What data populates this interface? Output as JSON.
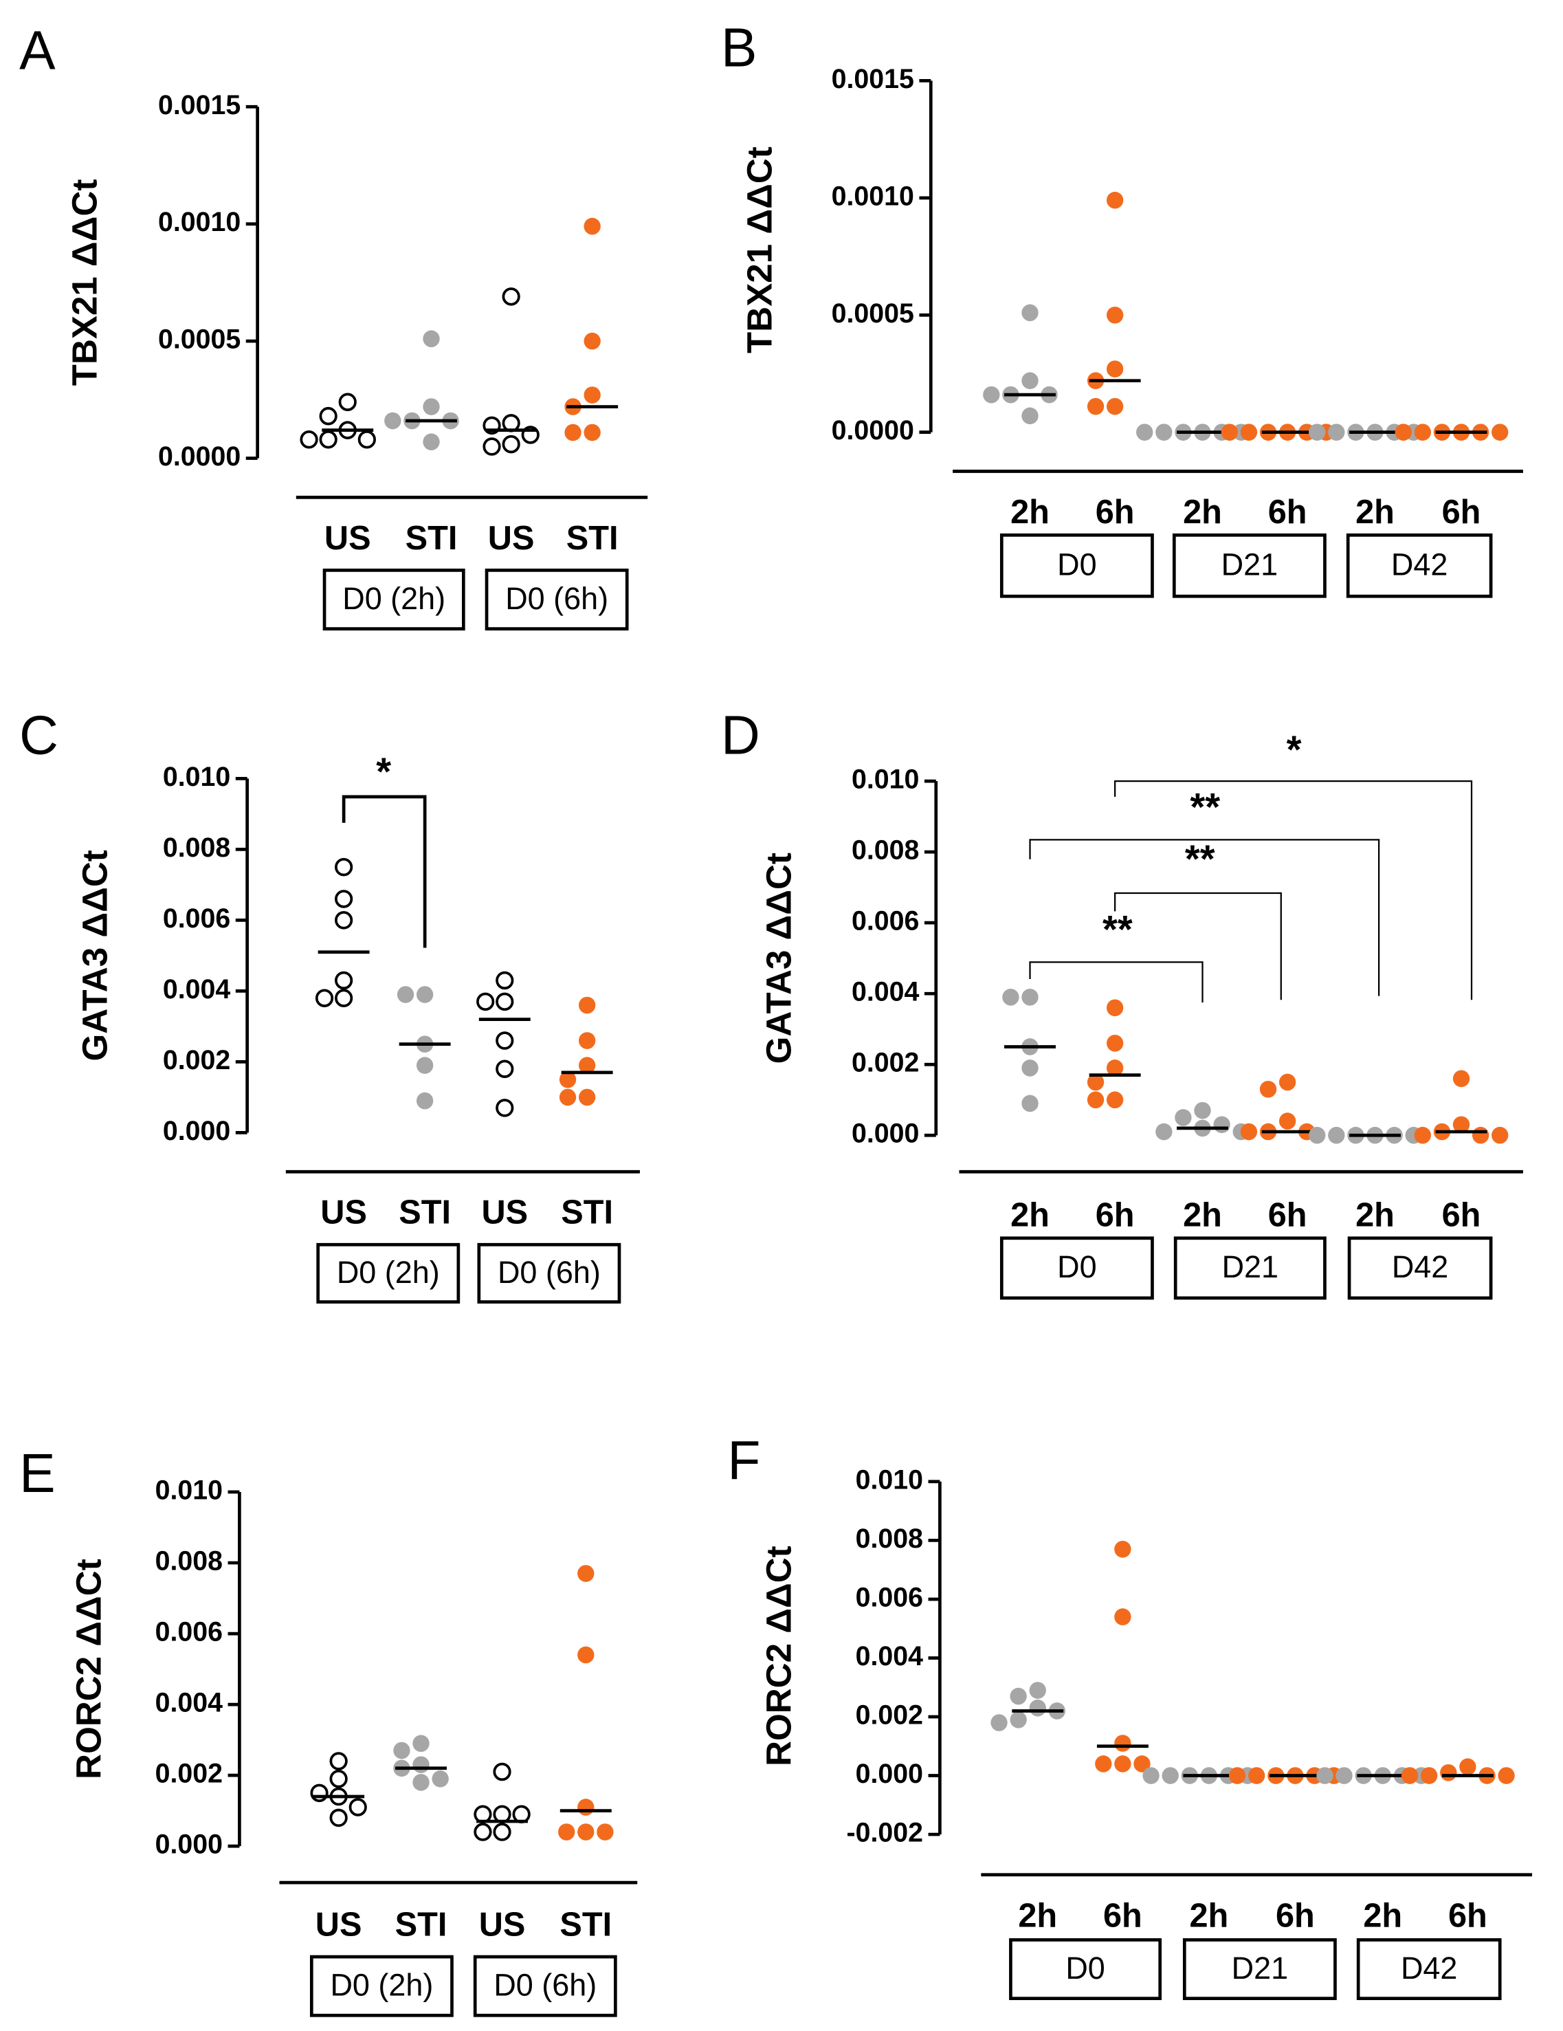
{
  "chart_data": [
    {
      "type": "dot",
      "panel": "A",
      "ylabel": "TBX21 ΔΔCt",
      "ylim": [
        0,
        0.0015
      ],
      "yticks": [
        {
          "value": 0,
          "label": "0.0000"
        },
        0.0005,
        {
          "value": 0.001,
          "label": "0.0010"
        },
        0.0015
      ],
      "groups": [
        {
          "label": "D0 (2h)",
          "items": [
            {
              "category": "US",
              "color": "#000000",
              "filled": false,
              "values": [
                0.00024,
                0.00018,
                0.00012,
                8e-05,
                8e-05,
                8e-05
              ],
              "median": 0.00012
            },
            {
              "category": "STI",
              "color": "#a6a6a6",
              "filled": true,
              "values": [
                0.00051,
                0.00022,
                0.00016,
                0.00016,
                0.00016,
                7e-05
              ],
              "median": 0.00016
            }
          ]
        },
        {
          "label": "D0 (6h)",
          "items": [
            {
              "category": "US",
              "color": "#000000",
              "filled": false,
              "values": [
                0.00069,
                0.00015,
                0.00014,
                0.0001,
                6e-05,
                5e-05
              ],
              "median": 0.00012
            },
            {
              "category": "STI",
              "color": "#f26b1d",
              "filled": true,
              "values": [
                0.00099,
                0.0005,
                0.00027,
                0.00022,
                0.00011,
                0.00011
              ],
              "median": 0.00022
            }
          ]
        }
      ],
      "annotations": []
    },
    {
      "type": "dot",
      "panel": "B",
      "ylabel": "TBX21 ΔΔCt",
      "ylim": [
        0,
        0.0015
      ],
      "yticks": [
        {
          "value": 0,
          "label": "0.0000"
        },
        0.0005,
        {
          "value": 0.001,
          "label": "0.0010"
        },
        0.0015
      ],
      "groups": [
        {
          "label": "D0",
          "items": [
            {
              "category": "2h",
              "color": "#a6a6a6",
              "filled": true,
              "values": [
                0.00051,
                0.00022,
                0.00016,
                0.00016,
                0.00016,
                7e-05
              ],
              "median": 0.00016
            },
            {
              "category": "6h",
              "color": "#f26b1d",
              "filled": true,
              "values": [
                0.00099,
                0.0005,
                0.00027,
                0.00022,
                0.00011,
                0.00011
              ],
              "median": 0.00022
            }
          ]
        },
        {
          "label": "D21",
          "items": [
            {
              "category": "2h",
              "color": "#a6a6a6",
              "filled": true,
              "values": [
                0,
                0,
                0,
                0,
                0,
                0
              ],
              "median": 0
            },
            {
              "category": "6h",
              "color": "#f26b1d",
              "filled": true,
              "values": [
                0,
                0,
                0,
                0,
                0,
                0
              ],
              "median": 0
            }
          ]
        },
        {
          "label": "D42",
          "items": [
            {
              "category": "2h",
              "color": "#a6a6a6",
              "filled": true,
              "values": [
                0,
                0,
                0,
                0,
                0,
                0
              ],
              "median": 0
            },
            {
              "category": "6h",
              "color": "#f26b1d",
              "filled": true,
              "values": [
                0,
                0,
                0,
                0,
                0,
                0
              ],
              "median": 0
            }
          ]
        }
      ],
      "annotations": []
    },
    {
      "type": "dot",
      "panel": "C",
      "ylabel": "GATA3 ΔΔCt",
      "ylim": [
        0,
        0.01
      ],
      "yticks": [
        {
          "value": 0,
          "label": "0.000"
        },
        0.002,
        0.004,
        0.006,
        0.008,
        {
          "value": 0.01,
          "label": "0.010"
        }
      ],
      "groups": [
        {
          "label": "D0 (2h)",
          "items": [
            {
              "category": "US",
              "color": "#000000",
              "filled": false,
              "values": [
                0.0075,
                0.0066,
                0.006,
                0.0043,
                0.0038,
                0.0038
              ],
              "median": 0.0051
            },
            {
              "category": "STI",
              "color": "#a6a6a6",
              "filled": true,
              "values": [
                0.0039,
                0.0039,
                0.0025,
                0.0019,
                0.0009
              ],
              "median": 0.0025
            }
          ]
        },
        {
          "label": "D0 (6h)",
          "items": [
            {
              "category": "US",
              "color": "#000000",
              "filled": false,
              "values": [
                0.0043,
                0.0037,
                0.0037,
                0.0026,
                0.0018,
                0.0007
              ],
              "median": 0.0032
            },
            {
              "category": "STI",
              "color": "#f26b1d",
              "filled": true,
              "values": [
                0.0036,
                0.0026,
                0.0019,
                0.0015,
                0.001,
                0.001
              ],
              "median": 0.0017
            }
          ]
        }
      ],
      "annotations": [
        "*"
      ]
    },
    {
      "type": "dot",
      "panel": "D",
      "ylabel": "GATA3 ΔΔCt",
      "ylim": [
        0,
        0.01
      ],
      "yticks": [
        {
          "value": 0,
          "label": "0.000"
        },
        0.002,
        0.004,
        0.006,
        0.008,
        {
          "value": 0.01,
          "label": "0.010"
        }
      ],
      "groups": [
        {
          "label": "D0",
          "items": [
            {
              "category": "2h",
              "color": "#a6a6a6",
              "filled": true,
              "values": [
                0.0039,
                0.0039,
                0.0025,
                0.0019,
                0.0009
              ],
              "median": 0.0025
            },
            {
              "category": "6h",
              "color": "#f26b1d",
              "filled": true,
              "values": [
                0.0036,
                0.0026,
                0.0019,
                0.0015,
                0.001,
                0.001
              ],
              "median": 0.0017
            }
          ]
        },
        {
          "label": "D21",
          "items": [
            {
              "category": "2h",
              "color": "#a6a6a6",
              "filled": true,
              "values": [
                0.0007,
                0.0005,
                0.0003,
                0.0002,
                0.0001,
                0.0001
              ],
              "median": 0.0002
            },
            {
              "category": "6h",
              "color": "#f26b1d",
              "filled": true,
              "values": [
                0.0015,
                0.0013,
                0.0004,
                0.0001,
                0.0001,
                0.0001
              ],
              "median": 0.0001
            }
          ]
        },
        {
          "label": "D42",
          "items": [
            {
              "category": "2h",
              "color": "#a6a6a6",
              "filled": true,
              "values": [
                0,
                0,
                0,
                0,
                0,
                0
              ],
              "median": 0
            },
            {
              "category": "6h",
              "color": "#f26b1d",
              "filled": true,
              "values": [
                0.0016,
                0.0003,
                0.0001,
                0,
                0,
                0
              ],
              "median": 0.0001
            }
          ]
        }
      ],
      "annotations": [
        "**",
        "**",
        "**",
        "*"
      ]
    },
    {
      "type": "dot",
      "panel": "E",
      "ylabel": "RORC2 ΔΔCt",
      "ylim": [
        0,
        0.01
      ],
      "yticks": [
        {
          "value": 0,
          "label": "0.000"
        },
        0.002,
        0.004,
        0.006,
        0.008,
        {
          "value": 0.01,
          "label": "0.010"
        }
      ],
      "groups": [
        {
          "label": "D0 (2h)",
          "items": [
            {
              "category": "US",
              "color": "#000000",
              "filled": false,
              "values": [
                0.0024,
                0.0019,
                0.0015,
                0.0014,
                0.0011,
                0.0008
              ],
              "median": 0.0014
            },
            {
              "category": "STI",
              "color": "#a6a6a6",
              "filled": true,
              "values": [
                0.0029,
                0.0027,
                0.0023,
                0.0022,
                0.0019,
                0.0018
              ],
              "median": 0.0022
            }
          ]
        },
        {
          "label": "D0 (6h)",
          "items": [
            {
              "category": "US",
              "color": "#000000",
              "filled": false,
              "values": [
                0.0021,
                0.0009,
                0.0009,
                0.0009,
                0.0004,
                0.0004
              ],
              "median": 0.0007
            },
            {
              "category": "STI",
              "color": "#f26b1d",
              "filled": true,
              "values": [
                0.0077,
                0.0054,
                0.0011,
                0.0004,
                0.0004,
                0.0004
              ],
              "median": 0.001
            }
          ]
        }
      ],
      "annotations": []
    },
    {
      "type": "dot",
      "panel": "F",
      "ylabel": "RORC2 ΔΔCt",
      "ylim": [
        -0.002,
        0.01
      ],
      "yticks": [
        -0.002,
        {
          "value": 0,
          "label": "0.000"
        },
        0.002,
        0.004,
        0.006,
        0.008,
        {
          "value": 0.01,
          "label": "0.010"
        }
      ],
      "groups": [
        {
          "label": "D0",
          "items": [
            {
              "category": "2h",
              "color": "#a6a6a6",
              "filled": true,
              "values": [
                0.0029,
                0.0027,
                0.0023,
                0.0022,
                0.0019,
                0.0018
              ],
              "median": 0.0022
            },
            {
              "category": "6h",
              "color": "#f26b1d",
              "filled": true,
              "values": [
                0.0077,
                0.0054,
                0.0011,
                0.0004,
                0.0004,
                0.0004
              ],
              "median": 0.001
            }
          ]
        },
        {
          "label": "D21",
          "items": [
            {
              "category": "2h",
              "color": "#a6a6a6",
              "filled": true,
              "values": [
                0,
                0,
                0,
                0,
                0,
                0
              ],
              "median": 0
            },
            {
              "category": "6h",
              "color": "#f26b1d",
              "filled": true,
              "values": [
                0,
                0,
                0,
                0,
                0,
                0
              ],
              "median": 0
            }
          ]
        },
        {
          "label": "D42",
          "items": [
            {
              "category": "2h",
              "color": "#a6a6a6",
              "filled": true,
              "values": [
                0,
                0,
                0,
                0,
                0,
                0
              ],
              "median": 0
            },
            {
              "category": "6h",
              "color": "#f26b1d",
              "filled": true,
              "values": [
                0.0003,
                0.0001,
                0,
                0,
                0,
                0
              ],
              "median": 0
            }
          ]
        }
      ],
      "annotations": []
    }
  ]
}
